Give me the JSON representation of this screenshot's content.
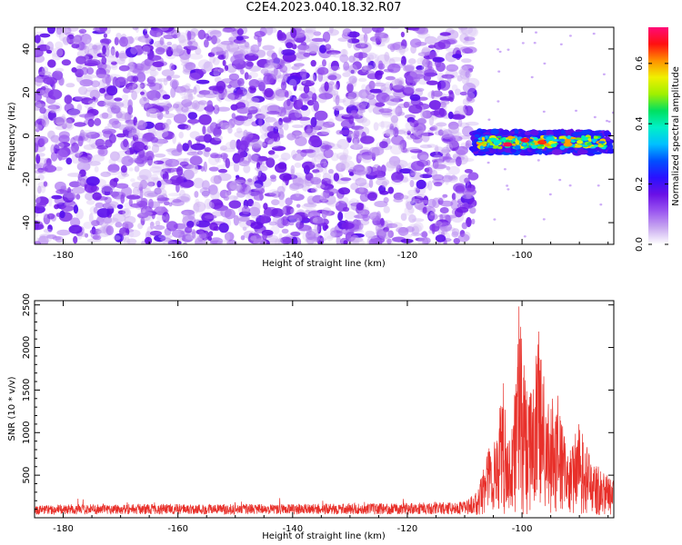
{
  "page_title": "C2E4.2023.040.18.32.R07",
  "colors": {
    "snr_line": "#e8302a",
    "spectrogram_colormap": [
      "#ffffff",
      "#c8a8f0",
      "#9a55f0",
      "#6a10e6",
      "#2a10ff",
      "#0050ff",
      "#00c0ff",
      "#00f0c8",
      "#00e060",
      "#a0f000",
      "#f0f000",
      "#ff9000",
      "#ff1010",
      "#ff0a78"
    ]
  },
  "chart_data": [
    {
      "type": "heatmap",
      "title": "C2E4.2023.040.18.32.R07",
      "xlabel": "Height of straight line (km)",
      "ylabel": "Frequency (Hz)",
      "xlim": [
        -185,
        -84
      ],
      "ylim": [
        -50,
        50
      ],
      "x_ticks": [
        -180,
        -160,
        -140,
        -120,
        -100
      ],
      "y_ticks": [
        -40,
        -20,
        0,
        20,
        40
      ],
      "colorbar": {
        "label": "Normalized spectral amplitude",
        "range": [
          0,
          0.72
        ],
        "ticks": [
          0.0,
          0.2,
          0.4,
          0.6
        ]
      },
      "regions": [
        {
          "x_range": [
            -185,
            -108.5
          ],
          "freq_range": [
            -50,
            50
          ],
          "amplitude": "noise 0.0-0.15"
        },
        {
          "x_range": [
            -108.5,
            -84.5
          ],
          "freq_range": [
            -8,
            2
          ],
          "amplitude": "signal 0.15-0.72",
          "center_freq": -3
        },
        {
          "x_range": [
            -108.5,
            -84
          ],
          "freq_range": [
            -50,
            50
          ],
          "amplitude": "near 0, sparse specks"
        }
      ],
      "peaks": [
        {
          "x": -102.5,
          "freq": -4,
          "amplitude": 0.7
        },
        {
          "x": -99.5,
          "freq": -2,
          "amplitude": 0.68
        },
        {
          "x": -96.5,
          "freq": -3,
          "amplitude": 0.65
        },
        {
          "x": -92,
          "freq": -4,
          "amplitude": 0.6
        }
      ]
    },
    {
      "type": "line",
      "xlabel": "Height of straight line (km)",
      "ylabel": "SNR (10 * v/v)",
      "xlim": [
        -185,
        -84
      ],
      "ylim": [
        0,
        2550
      ],
      "x_ticks": [
        -180,
        -160,
        -140,
        -120,
        -100
      ],
      "y_ticks": [
        500,
        1000,
        1500,
        2000,
        2500
      ],
      "series": [
        {
          "envelope_points": [
            {
              "x": -185,
              "y": 150
            },
            {
              "x": -170,
              "y": 165
            },
            {
              "x": -150,
              "y": 160
            },
            {
              "x": -130,
              "y": 165
            },
            {
              "x": -110,
              "y": 190
            },
            {
              "x": -108,
              "y": 300
            },
            {
              "x": -107,
              "y": 500
            },
            {
              "x": -106,
              "y": 800
            },
            {
              "x": -104,
              "y": 1100
            },
            {
              "x": -103.5,
              "y": 1800
            },
            {
              "x": -102.5,
              "y": 900
            },
            {
              "x": -101.5,
              "y": 1200
            },
            {
              "x": -100.5,
              "y": 2550
            },
            {
              "x": -99,
              "y": 1300
            },
            {
              "x": -97,
              "y": 2200
            },
            {
              "x": -95.5,
              "y": 1300
            },
            {
              "x": -94,
              "y": 1500
            },
            {
              "x": -92,
              "y": 700
            },
            {
              "x": -90,
              "y": 1100
            },
            {
              "x": -88,
              "y": 650
            },
            {
              "x": -86,
              "y": 550
            },
            {
              "x": -84,
              "y": 400
            }
          ],
          "baseline_noise_range": [
            0,
            320
          ]
        }
      ]
    }
  ]
}
